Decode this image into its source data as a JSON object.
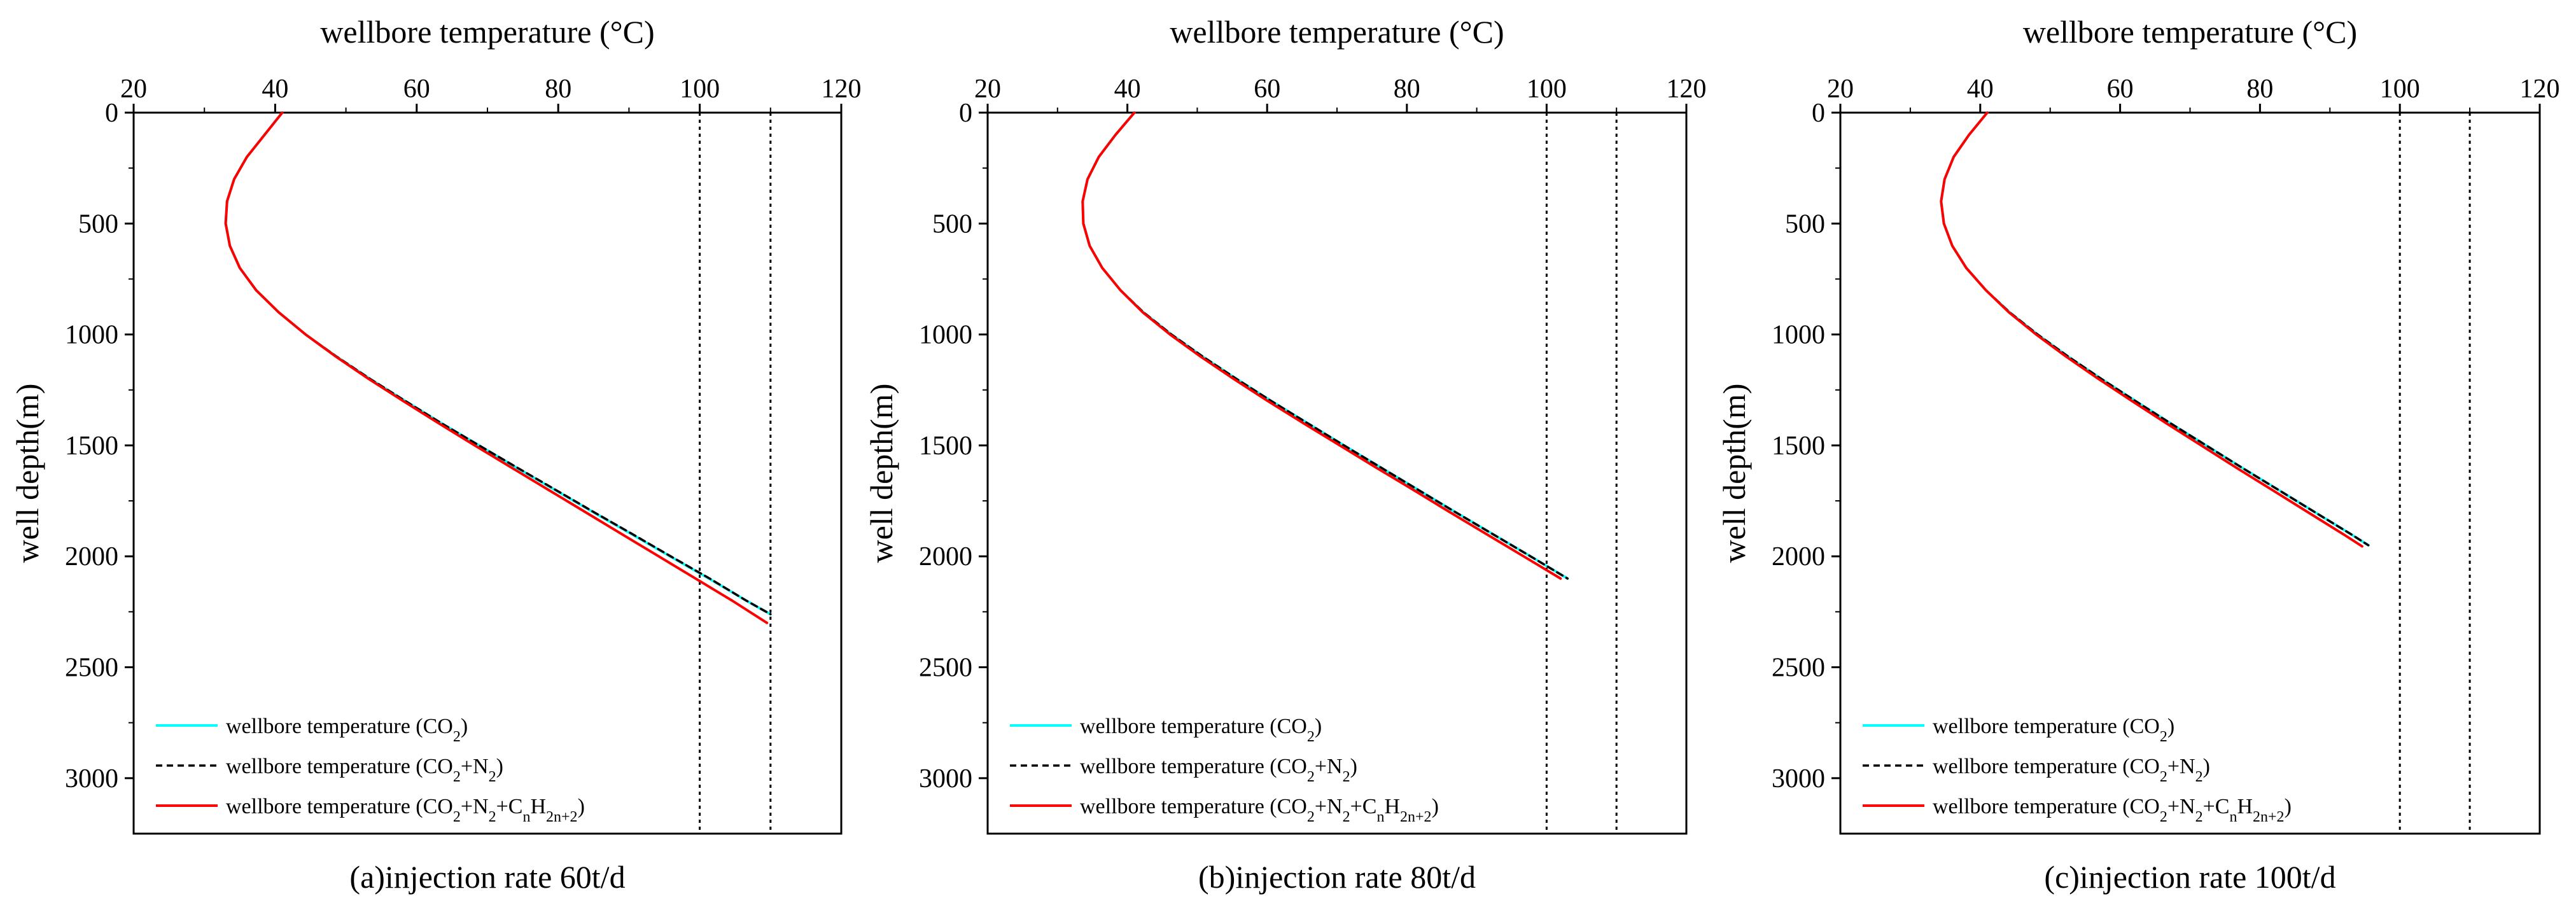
{
  "figure": {
    "panel_count": 3
  },
  "colors": {
    "co2": "#00FFFF",
    "co2_n2": "#000000",
    "co2_n2_cnh": "#FF0000",
    "axis": "#000000",
    "reference_line": "#000000"
  },
  "legend": [
    {
      "key": "co2",
      "label": "wellbore temperature (CO",
      "subs": [
        "2"
      ],
      "suffix": ")"
    },
    {
      "key": "co2_n2",
      "label": "wellbore temperature (CO",
      "subs": [
        "2"
      ],
      "suffix": "+N",
      "tail_sub": "2",
      "end": ")"
    },
    {
      "key": "co2_n2_cnh",
      "label": "wellbore temperature (CO2+N2+CnH2n+2)"
    }
  ],
  "chart_data": [
    {
      "type": "line",
      "title": "(a)injection rate 60t/d",
      "xlabel": "wellbore temperature (°C)",
      "ylabel": "well depth(m)",
      "xlim": [
        20,
        120
      ],
      "ylim": [
        0,
        3250
      ],
      "y_inverted": true,
      "x_axis_position": "top",
      "xticks": [
        20,
        40,
        60,
        80,
        100,
        120
      ],
      "yticks": [
        0,
        500,
        1000,
        1500,
        2000,
        2500,
        3000
      ],
      "reference_lines_x": [
        100,
        110
      ],
      "legend_position": "bottom-left",
      "series": [
        {
          "name": "wellbore temperature (CO2)",
          "key": "co2",
          "style": "solid",
          "x": [
            41,
            38.5,
            36,
            34.2,
            33.2,
            33.0,
            33.6,
            35.0,
            37.3,
            40.5,
            44.3,
            48.7,
            53.4,
            58.4,
            63.5,
            68.8,
            74.1,
            79.5,
            84.9,
            90.4,
            95.8,
            101.3,
            106.6,
            110.0
          ],
          "y": [
            0,
            100,
            200,
            300,
            400,
            500,
            600,
            700,
            800,
            900,
            1000,
            1100,
            1200,
            1300,
            1400,
            1500,
            1600,
            1700,
            1800,
            1900,
            2000,
            2100,
            2200,
            2261
          ]
        },
        {
          "name": "wellbore temperature (CO2+N2)",
          "key": "co2_n2",
          "style": "dashed",
          "x": [
            41,
            38.5,
            36,
            34.2,
            33.2,
            33.0,
            33.6,
            35.0,
            37.3,
            40.5,
            44.3,
            48.7,
            53.4,
            58.4,
            63.5,
            68.8,
            74.2,
            79.6,
            85.0,
            90.5,
            95.9,
            101.4,
            106.6,
            110.0
          ],
          "y": [
            0,
            100,
            200,
            300,
            400,
            500,
            600,
            700,
            800,
            900,
            1000,
            1100,
            1200,
            1300,
            1400,
            1500,
            1600,
            1700,
            1800,
            1900,
            2000,
            2100,
            2200,
            2261
          ]
        },
        {
          "name": "wellbore temperature (CO2+N2+CnH2n+2)",
          "key": "co2_n2_cnh",
          "style": "solid",
          "x": [
            41,
            38.5,
            36,
            34.2,
            33.2,
            33.0,
            33.6,
            35.0,
            37.3,
            40.5,
            44.3,
            48.6,
            53.2,
            58.1,
            63.1,
            68.2,
            73.4,
            78.6,
            83.8,
            89.0,
            94.2,
            99.4,
            104.6,
            109.5
          ],
          "y": [
            0,
            100,
            200,
            300,
            400,
            500,
            600,
            700,
            800,
            900,
            1000,
            1100,
            1200,
            1300,
            1400,
            1500,
            1600,
            1700,
            1800,
            1900,
            2000,
            2100,
            2200,
            2300
          ]
        }
      ]
    },
    {
      "type": "line",
      "title": "(b)injection rate 80t/d",
      "xlabel": "wellbore temperature (°C)",
      "ylabel": "well depth(m)",
      "xlim": [
        20,
        120
      ],
      "ylim": [
        0,
        3250
      ],
      "y_inverted": true,
      "x_axis_position": "top",
      "xticks": [
        20,
        40,
        60,
        80,
        100,
        120
      ],
      "yticks": [
        0,
        500,
        1000,
        1500,
        2000,
        2500,
        3000
      ],
      "reference_lines_x": [
        100,
        110
      ],
      "legend_position": "bottom-left",
      "series": [
        {
          "name": "wellbore temperature (CO2)",
          "key": "co2",
          "style": "solid",
          "x": [
            41,
            38.3,
            35.9,
            34.3,
            33.6,
            33.7,
            34.6,
            36.4,
            39.0,
            42.3,
            46.3,
            50.8,
            55.6,
            60.6,
            65.8,
            71.0,
            76.3,
            81.6,
            86.9,
            92.3,
            97.7,
            103.0
          ],
          "y": [
            0,
            100,
            200,
            300,
            400,
            500,
            600,
            700,
            800,
            900,
            1000,
            1100,
            1200,
            1300,
            1400,
            1500,
            1600,
            1700,
            1800,
            1900,
            2000,
            2100
          ]
        },
        {
          "name": "wellbore temperature (CO2+N2)",
          "key": "co2_n2",
          "style": "dashed",
          "x": [
            41,
            38.3,
            35.9,
            34.3,
            33.6,
            33.7,
            34.6,
            36.4,
            39.0,
            42.3,
            46.3,
            50.8,
            55.6,
            60.6,
            65.8,
            71.0,
            76.3,
            81.6,
            86.9,
            92.3,
            97.7,
            103.0
          ],
          "y": [
            0,
            100,
            200,
            300,
            400,
            500,
            600,
            700,
            800,
            900,
            1000,
            1100,
            1200,
            1300,
            1400,
            1500,
            1600,
            1700,
            1800,
            1900,
            2000,
            2100
          ]
        },
        {
          "name": "wellbore temperature (CO2+N2+CnH2n+2)",
          "key": "co2_n2_cnh",
          "style": "solid",
          "x": [
            41,
            38.3,
            35.9,
            34.3,
            33.6,
            33.7,
            34.6,
            36.4,
            39.0,
            42.2,
            46.1,
            50.5,
            55.2,
            60.1,
            65.2,
            70.4,
            75.6,
            80.9,
            86.1,
            91.4,
            96.7,
            102.0
          ],
          "y": [
            0,
            100,
            200,
            300,
            400,
            500,
            600,
            700,
            800,
            900,
            1000,
            1100,
            1200,
            1300,
            1400,
            1500,
            1600,
            1700,
            1800,
            1900,
            2000,
            2100
          ]
        }
      ]
    },
    {
      "type": "line",
      "title": "(c)injection rate 100t/d",
      "xlabel": "wellbore temperature (°C)",
      "ylabel": "well depth(m)",
      "xlim": [
        20,
        120
      ],
      "ylim": [
        0,
        3250
      ],
      "y_inverted": true,
      "x_axis_position": "top",
      "xticks": [
        20,
        40,
        60,
        80,
        100,
        120
      ],
      "yticks": [
        0,
        500,
        1000,
        1500,
        2000,
        2500,
        3000
      ],
      "reference_lines_x": [
        100,
        110
      ],
      "legend_position": "bottom-left",
      "series": [
        {
          "name": "wellbore temperature (CO2)",
          "key": "co2",
          "style": "solid",
          "x": [
            41,
            38.4,
            36.2,
            34.9,
            34.4,
            34.8,
            36.0,
            38.0,
            40.8,
            44.2,
            48.2,
            52.6,
            57.3,
            62.2,
            67.2,
            72.3,
            77.4,
            82.6,
            87.8,
            93.0,
            95.5
          ],
          "y": [
            0,
            100,
            200,
            300,
            400,
            500,
            600,
            700,
            800,
            900,
            1000,
            1100,
            1200,
            1300,
            1400,
            1500,
            1600,
            1700,
            1800,
            1900,
            1950
          ]
        },
        {
          "name": "wellbore temperature (CO2+N2)",
          "key": "co2_n2",
          "style": "dashed",
          "x": [
            41,
            38.4,
            36.2,
            34.9,
            34.4,
            34.8,
            36.0,
            38.0,
            40.8,
            44.2,
            48.2,
            52.6,
            57.3,
            62.2,
            67.2,
            72.3,
            77.4,
            82.6,
            87.8,
            93.0,
            95.5
          ],
          "y": [
            0,
            100,
            200,
            300,
            400,
            500,
            600,
            700,
            800,
            900,
            1000,
            1100,
            1200,
            1300,
            1400,
            1500,
            1600,
            1700,
            1800,
            1900,
            1950
          ]
        },
        {
          "name": "wellbore temperature (CO2+N2+CnH2n+2)",
          "key": "co2_n2_cnh",
          "style": "solid",
          "x": [
            41,
            38.4,
            36.2,
            34.9,
            34.4,
            34.8,
            36.0,
            38.0,
            40.8,
            44.1,
            48.0,
            52.3,
            56.9,
            61.7,
            66.6,
            71.6,
            76.6,
            81.7,
            86.8,
            91.9,
            94.6
          ],
          "y": [
            0,
            100,
            200,
            300,
            400,
            500,
            600,
            700,
            800,
            900,
            1000,
            1100,
            1200,
            1300,
            1400,
            1500,
            1600,
            1700,
            1800,
            1900,
            1955
          ]
        }
      ]
    }
  ]
}
